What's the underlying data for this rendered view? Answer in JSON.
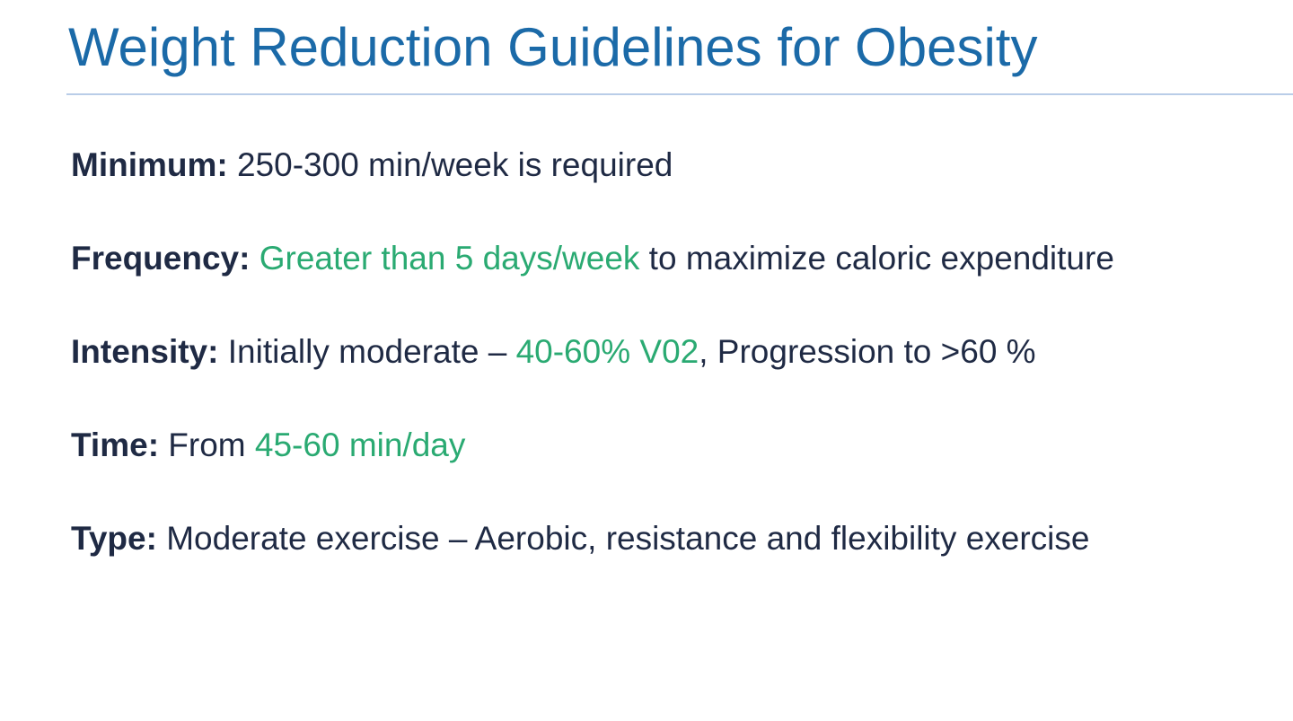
{
  "title": "Weight Reduction Guidelines for Obesity",
  "items": [
    {
      "label": "Minimum:",
      "segments": [
        {
          "text": " 250-300 min/week is required",
          "highlight": false
        }
      ]
    },
    {
      "label": "Frequency:",
      "segments": [
        {
          "text": " ",
          "highlight": false
        },
        {
          "text": "Greater than 5 days/week",
          "highlight": true
        },
        {
          "text": " to maximize caloric expenditure",
          "highlight": false
        }
      ]
    },
    {
      "label": "Intensity:",
      "segments": [
        {
          "text": " Initially moderate – ",
          "highlight": false
        },
        {
          "text": "40-60% V02",
          "highlight": true
        },
        {
          "text": ", Progression to >60 %",
          "highlight": false
        }
      ]
    },
    {
      "label": "Time:",
      "segments": [
        {
          "text": " From ",
          "highlight": false
        },
        {
          "text": "45-60 min/day",
          "highlight": true
        }
      ]
    },
    {
      "label": "Type:",
      "segments": [
        {
          "text": " Moderate exercise – Aerobic, resistance and flexibility exercise",
          "highlight": false
        }
      ]
    }
  ]
}
